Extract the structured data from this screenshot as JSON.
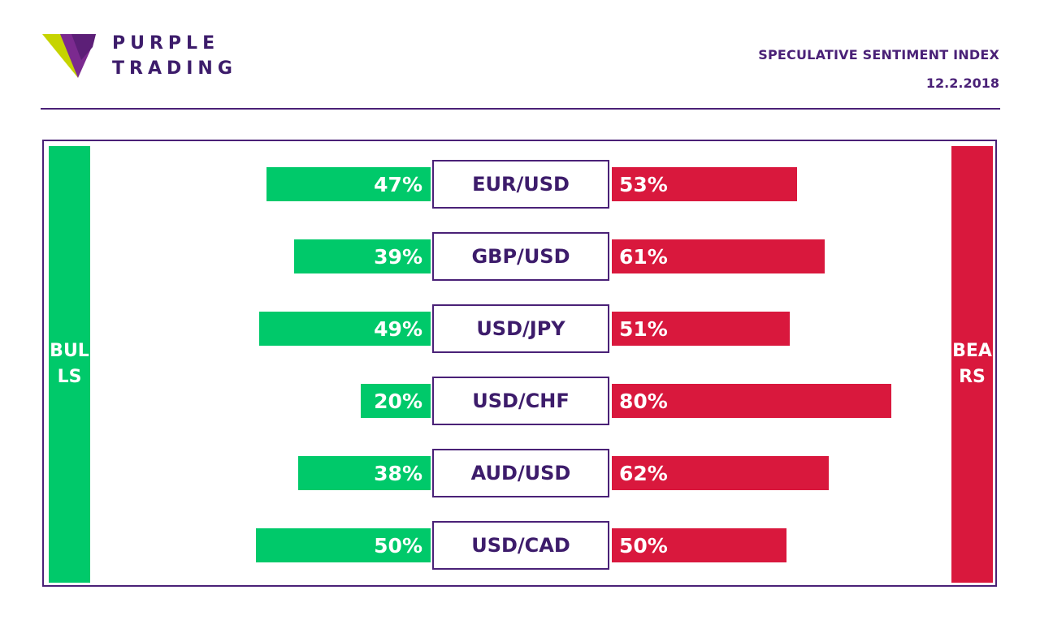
{
  "brand": {
    "line1": "PURPLE",
    "line2": "TRADING"
  },
  "title": "SPECULATIVE SENTIMENT INDEX",
  "date": "12.2.2018",
  "sides": {
    "bulls": "BULLS",
    "bears": "BEARS"
  },
  "colors": {
    "bulls": "#00c96a",
    "bears": "#d9183d",
    "purple": "#4a2177"
  },
  "chart_data": {
    "type": "bar",
    "categories": [
      "EUR/USD",
      "GBP/USD",
      "USD/JPY",
      "USD/CHF",
      "AUD/USD",
      "USD/CAD"
    ],
    "series": [
      {
        "name": "BULLS",
        "values": [
          47,
          39,
          49,
          20,
          38,
          50
        ]
      },
      {
        "name": "BEARS",
        "values": [
          53,
          61,
          51,
          80,
          62,
          50
        ]
      }
    ],
    "labels_bulls": [
      "47%",
      "39%",
      "49%",
      "20%",
      "38%",
      "50%"
    ],
    "labels_bears": [
      "53%",
      "61%",
      "51%",
      "80%",
      "62%",
      "50%"
    ],
    "unit": "%"
  }
}
